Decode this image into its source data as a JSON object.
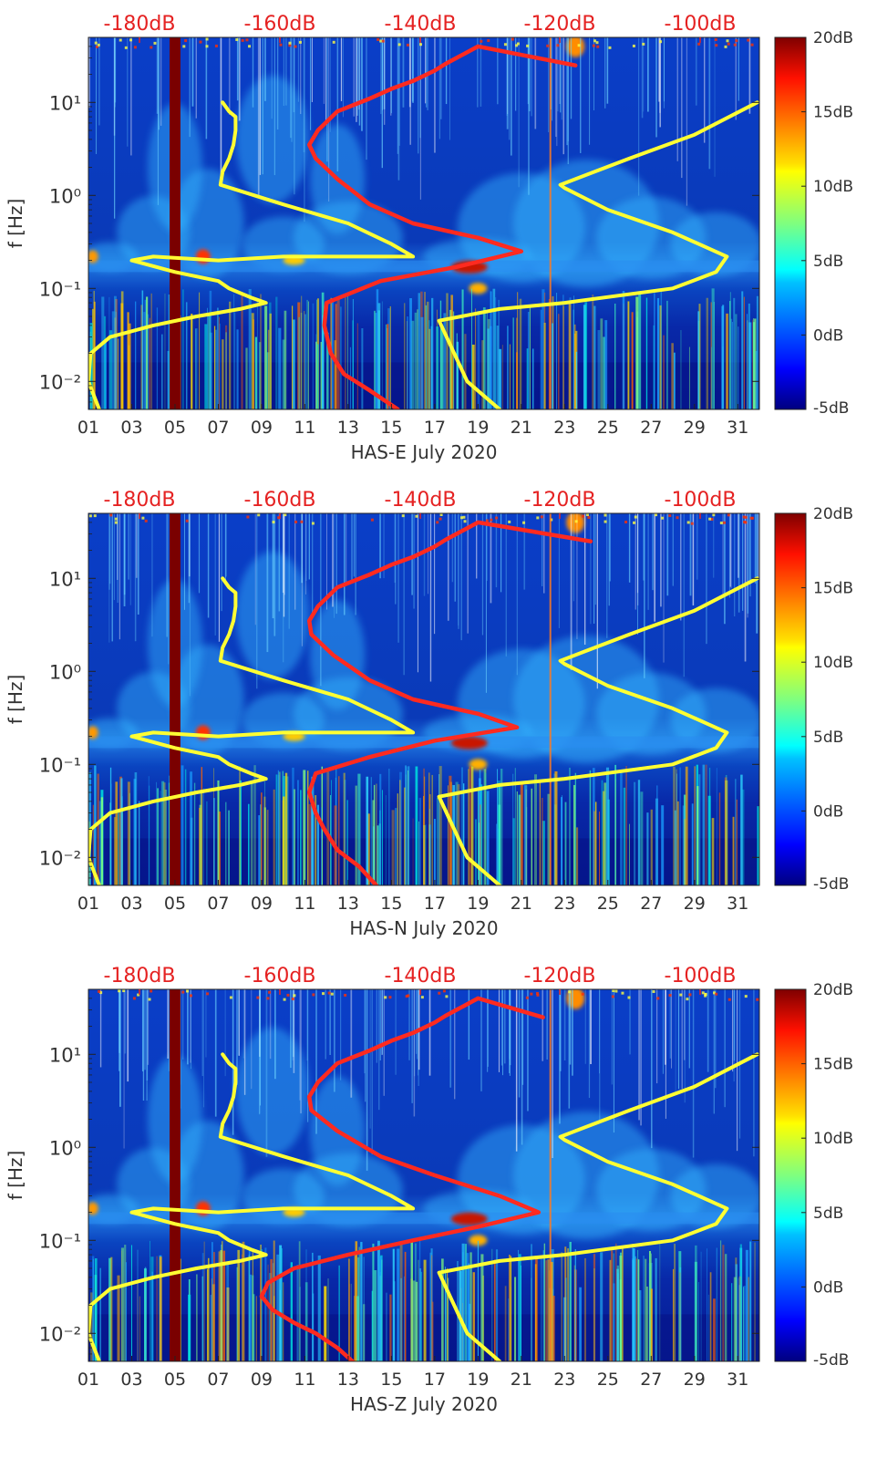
{
  "chart_data": [
    {
      "type": "heatmap",
      "xlabel": "HAS-E July 2020",
      "ylabel": "f [Hz]",
      "xticks": [
        "01",
        "03",
        "05",
        "07",
        "09",
        "11",
        "13",
        "15",
        "17",
        "19",
        "21",
        "23",
        "25",
        "27",
        "29",
        "31"
      ],
      "yticks": [
        "10⁻²",
        "10⁻¹",
        "10⁰",
        "10¹"
      ],
      "top_ticks": [
        "-180dB",
        "-160dB",
        "-140dB",
        "-120dB",
        "-100dB"
      ],
      "colorbar_ticks": [
        "20dB",
        "15dB",
        "10dB",
        "5dB",
        "0dB",
        "-5dB"
      ],
      "xlim": [
        1,
        32
      ],
      "ylim": [
        0.005,
        50
      ],
      "clim": [
        -5,
        20
      ],
      "yscale": "log",
      "series": [
        {
          "color": "#ff2a1f",
          "x": [
            15.3,
            14,
            12.8,
            12.2,
            11.9,
            12.0,
            14.5,
            18,
            21,
            19,
            16,
            14,
            12.5,
            11.5,
            11.2,
            11.6,
            12.5,
            14,
            15,
            16,
            17,
            17.5,
            18,
            19,
            23.5
          ],
          "y": [
            0.005,
            0.008,
            0.012,
            0.02,
            0.04,
            0.07,
            0.12,
            0.17,
            0.25,
            0.35,
            0.5,
            0.8,
            1.5,
            2.5,
            3.5,
            5,
            8,
            11,
            14,
            17,
            22,
            26,
            30,
            40,
            25
          ]
        },
        {
          "color": "#ffff33",
          "x": [
            1.5,
            1.0,
            1.1,
            2,
            4,
            6,
            8,
            9.2,
            8.5,
            7.5,
            7,
            7,
            5,
            3,
            4,
            7,
            10,
            13,
            16,
            15,
            13,
            10,
            7.1,
            7.2,
            7.5,
            7.7,
            7.8,
            7.8,
            7.5,
            7.2
          ],
          "y": [
            0.005,
            0.01,
            0.02,
            0.03,
            0.04,
            0.05,
            0.06,
            0.07,
            0.08,
            0.1,
            0.12,
            0.12,
            0.15,
            0.2,
            0.22,
            0.2,
            0.22,
            0.22,
            0.22,
            0.3,
            0.5,
            0.8,
            1.3,
            1.8,
            2.5,
            3.5,
            5,
            7,
            8,
            10
          ]
        },
        {
          "color": "#ffff33",
          "x": [
            20,
            18.5,
            17.2,
            20,
            23,
            28,
            30,
            30.5,
            28,
            25,
            23,
            22.8,
            26,
            29,
            31.9
          ],
          "y": [
            0.005,
            0.01,
            0.045,
            0.06,
            0.07,
            0.1,
            0.15,
            0.22,
            0.4,
            0.7,
            1.2,
            1.3,
            2.5,
            4.5,
            10
          ]
        }
      ]
    },
    {
      "type": "heatmap",
      "xlabel": "HAS-N July 2020",
      "ylabel": "f [Hz]",
      "xticks": [
        "01",
        "03",
        "05",
        "07",
        "09",
        "11",
        "13",
        "15",
        "17",
        "19",
        "21",
        "23",
        "25",
        "27",
        "29",
        "31"
      ],
      "yticks": [
        "10⁻²",
        "10⁻¹",
        "10⁰",
        "10¹"
      ],
      "top_ticks": [
        "-180dB",
        "-160dB",
        "-140dB",
        "-120dB",
        "-100dB"
      ],
      "colorbar_ticks": [
        "20dB",
        "15dB",
        "10dB",
        "5dB",
        "0dB",
        "-5dB"
      ],
      "xlim": [
        1,
        32
      ],
      "ylim": [
        0.005,
        50
      ],
      "clim": [
        -5,
        20
      ],
      "yscale": "log",
      "series": [
        {
          "color": "#ff2a1f",
          "x": [
            14.3,
            13.5,
            12.5,
            11.9,
            11.5,
            11.2,
            11.5,
            14,
            17,
            20.8,
            19,
            16,
            14,
            12.3,
            11.3,
            11.2,
            11.6,
            12.5,
            14,
            15,
            16,
            17,
            17.5,
            18,
            19,
            24.2
          ],
          "y": [
            0.005,
            0.008,
            0.012,
            0.02,
            0.03,
            0.05,
            0.08,
            0.12,
            0.18,
            0.25,
            0.35,
            0.5,
            0.8,
            1.5,
            2.5,
            3.5,
            5,
            8,
            11,
            14,
            17,
            22,
            26,
            30,
            40,
            25
          ]
        },
        {
          "color": "#ffff33",
          "x": [
            1.5,
            1.0,
            1.1,
            2,
            4,
            6,
            8,
            9.2,
            8.5,
            7.5,
            7,
            7,
            5,
            3,
            4,
            7,
            10,
            13,
            16,
            15,
            13,
            10,
            7.1,
            7.2,
            7.5,
            7.7,
            7.8,
            7.8,
            7.5,
            7.2
          ],
          "y": [
            0.005,
            0.01,
            0.02,
            0.03,
            0.04,
            0.05,
            0.06,
            0.07,
            0.08,
            0.1,
            0.12,
            0.12,
            0.15,
            0.2,
            0.22,
            0.2,
            0.22,
            0.22,
            0.22,
            0.3,
            0.5,
            0.8,
            1.3,
            1.8,
            2.5,
            3.5,
            5,
            7,
            8,
            10
          ]
        },
        {
          "color": "#ffff33",
          "x": [
            20,
            18.5,
            17.2,
            20,
            23,
            28,
            30,
            30.5,
            28,
            25,
            23,
            22.8,
            26,
            29,
            31.9
          ],
          "y": [
            0.005,
            0.01,
            0.045,
            0.06,
            0.07,
            0.1,
            0.15,
            0.22,
            0.4,
            0.7,
            1.2,
            1.3,
            2.5,
            4.5,
            10
          ]
        }
      ]
    },
    {
      "type": "heatmap",
      "xlabel": "HAS-Z July 2020",
      "ylabel": "f [Hz]",
      "xticks": [
        "01",
        "03",
        "05",
        "07",
        "09",
        "11",
        "13",
        "15",
        "17",
        "19",
        "21",
        "23",
        "25",
        "27",
        "29",
        "31"
      ],
      "yticks": [
        "10⁻²",
        "10⁻¹",
        "10⁰",
        "10¹"
      ],
      "top_ticks": [
        "-180dB",
        "-160dB",
        "-140dB",
        "-120dB",
        "-100dB"
      ],
      "colorbar_ticks": [
        "20dB",
        "15dB",
        "10dB",
        "5dB",
        "0dB",
        "-5dB"
      ],
      "xlim": [
        1,
        32
      ],
      "ylim": [
        0.005,
        50
      ],
      "clim": [
        -5,
        20
      ],
      "yscale": "log",
      "series": [
        {
          "color": "#ff2a1f",
          "x": [
            13.2,
            12.5,
            11.5,
            10.5,
            9.5,
            9,
            9.3,
            10.5,
            13,
            16,
            19,
            21.8,
            20,
            17,
            14.5,
            12.5,
            11.3,
            11.2,
            11.6,
            12.5,
            14,
            15,
            16,
            17,
            17.5,
            18,
            19,
            22
          ],
          "y": [
            0.005,
            0.007,
            0.01,
            0.013,
            0.018,
            0.025,
            0.035,
            0.05,
            0.07,
            0.1,
            0.14,
            0.2,
            0.3,
            0.5,
            0.8,
            1.5,
            2.5,
            3.5,
            5,
            8,
            11,
            14,
            17,
            22,
            26,
            30,
            40,
            25
          ]
        },
        {
          "color": "#ffff33",
          "x": [
            1.5,
            1.0,
            1.1,
            2,
            4,
            6,
            8,
            9.2,
            8.5,
            7.5,
            7,
            7,
            5,
            3,
            4,
            7,
            10,
            13,
            16,
            15,
            13,
            10,
            7.1,
            7.2,
            7.5,
            7.7,
            7.8,
            7.8,
            7.5,
            7.2
          ],
          "y": [
            0.005,
            0.01,
            0.02,
            0.03,
            0.04,
            0.05,
            0.06,
            0.07,
            0.08,
            0.1,
            0.12,
            0.12,
            0.15,
            0.2,
            0.22,
            0.2,
            0.22,
            0.22,
            0.22,
            0.3,
            0.5,
            0.8,
            1.3,
            1.8,
            2.5,
            3.5,
            5,
            7,
            8,
            10
          ]
        },
        {
          "color": "#ffff33",
          "x": [
            20,
            18.5,
            17.2,
            20,
            23,
            28,
            30,
            30.5,
            28,
            25,
            23,
            22.8,
            26,
            29,
            31.9
          ],
          "y": [
            0.005,
            0.01,
            0.045,
            0.06,
            0.07,
            0.1,
            0.15,
            0.22,
            0.4,
            0.7,
            1.2,
            1.3,
            2.5,
            4.5,
            10
          ]
        }
      ]
    }
  ]
}
